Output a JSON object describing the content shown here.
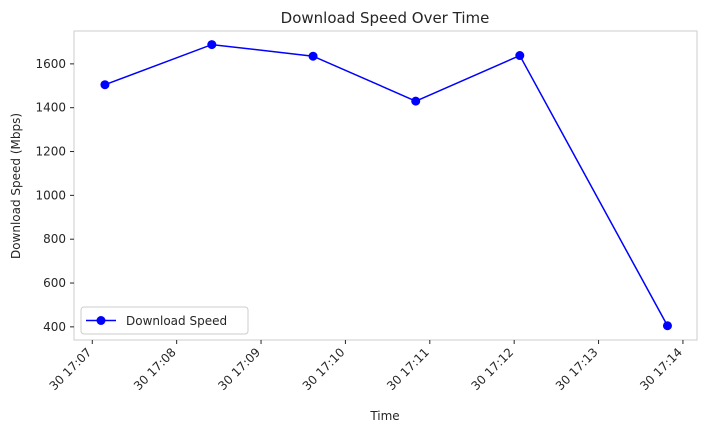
{
  "chart_data": {
    "type": "line",
    "title": "Download Speed Over Time",
    "xlabel": "Time",
    "ylabel": "Download Speed (Mbps)",
    "x_tick_labels": [
      "30 17:07",
      "30 17:08",
      "30 17:09",
      "30 17:10",
      "30 17:11",
      "30 17:12",
      "30 17:13",
      "30 17:14"
    ],
    "y_ticks": [
      400,
      600,
      800,
      1000,
      1200,
      1400,
      1600
    ],
    "ylim": [
      340,
      1750
    ],
    "xlim": [
      "30 17:06:47",
      "30 17:14:10"
    ],
    "grid": false,
    "legend_position": "lower-left",
    "series": [
      {
        "name": "Download Speed",
        "color": "#0000ff",
        "marker": "circle",
        "x": [
          "30 17:07:09",
          "30 17:08:25",
          "30 17:09:37",
          "30 17:10:50",
          "30 17:12:04",
          "30 17:13:49"
        ],
        "y": [
          1505,
          1688,
          1635,
          1430,
          1638,
          405
        ]
      }
    ]
  }
}
